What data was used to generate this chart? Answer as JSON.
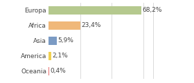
{
  "categories": [
    "Europa",
    "Africa",
    "Asia",
    "America",
    "Oceania"
  ],
  "values": [
    68.2,
    23.4,
    5.9,
    2.1,
    0.4
  ],
  "labels": [
    "68,2%",
    "23,4%",
    "5,9%",
    "2,1%",
    "0,4%"
  ],
  "bar_colors": [
    "#b5c98e",
    "#f0b87a",
    "#7b9bc4",
    "#f0d050",
    "#e87070"
  ],
  "background_color": "#ffffff",
  "label_fontsize": 6.5,
  "tick_fontsize": 6.5,
  "xlim": [
    0,
    90
  ],
  "grid_lines": [
    23.3,
    46.6,
    70.0
  ],
  "bar_height": 0.55
}
